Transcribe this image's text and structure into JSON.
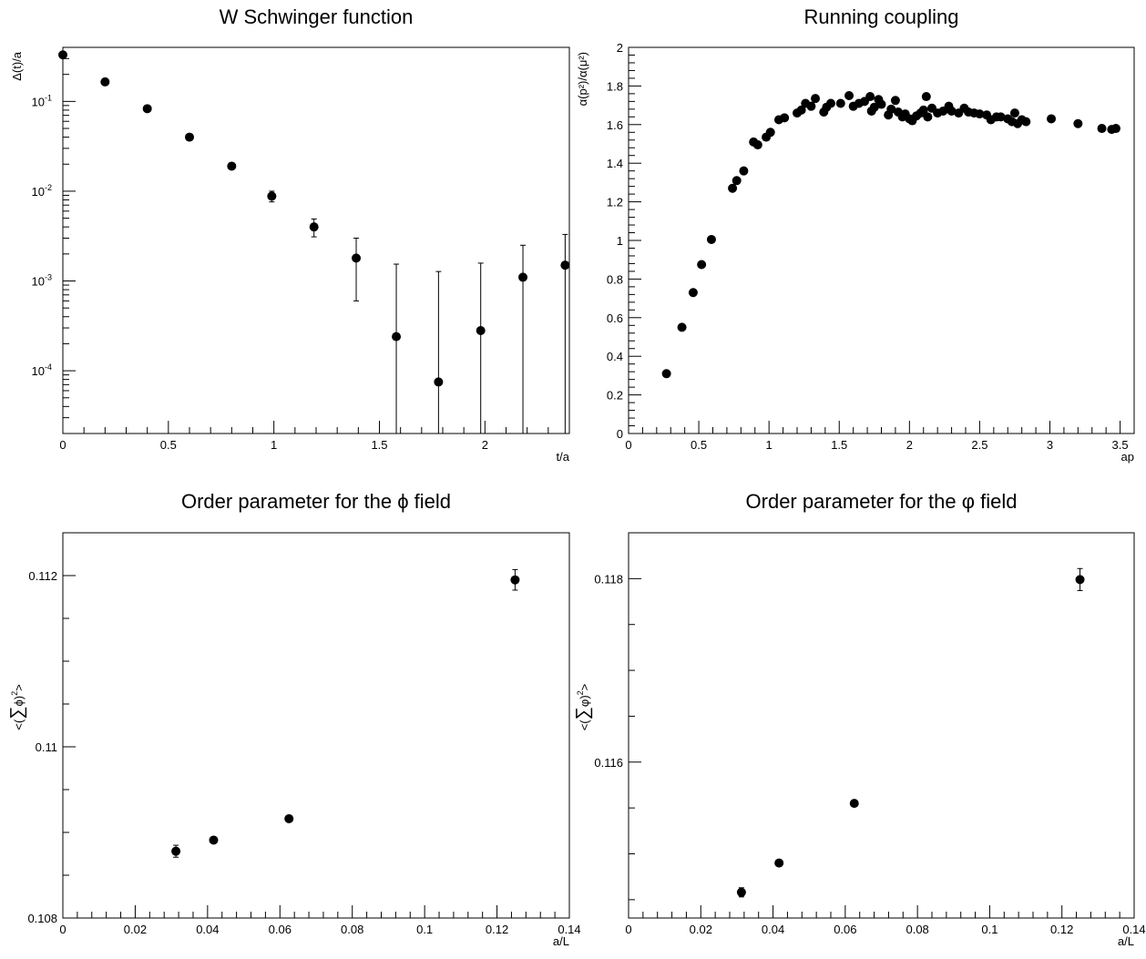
{
  "chart_data": [
    {
      "type": "scatter",
      "title": "W Schwinger function",
      "xlabel": "t/a",
      "ylabel": "Δ(t)/a",
      "xlim": [
        0,
        2.4
      ],
      "ylim": [
        2e-05,
        0.4
      ],
      "yscale": "log",
      "x_ticks": [
        0,
        0.5,
        1,
        1.5,
        2
      ],
      "y_ticks": [
        0.0001,
        0.001,
        0.01,
        0.1
      ],
      "x_tick_labels": [
        "0",
        "0.5",
        "1",
        "1.5",
        "2"
      ],
      "y_tick_labels": [
        {
          "base": "10",
          "exp": "-4"
        },
        {
          "base": "10",
          "exp": "-3"
        },
        {
          "base": "10",
          "exp": "-2"
        },
        {
          "base": "10",
          "exp": "-1"
        }
      ],
      "grid": false,
      "points": [
        {
          "x": 0.0,
          "y": 0.33,
          "err": 0
        },
        {
          "x": 0.2,
          "y": 0.165,
          "err": 0
        },
        {
          "x": 0.4,
          "y": 0.083,
          "err": 0
        },
        {
          "x": 0.6,
          "y": 0.04,
          "err": 0
        },
        {
          "x": 0.8,
          "y": 0.019,
          "err": 0
        },
        {
          "x": 0.99,
          "y": 0.0088,
          "err": 0.0012
        },
        {
          "x": 1.19,
          "y": 0.004,
          "err": 0.0009
        },
        {
          "x": 1.39,
          "y": 0.0018,
          "err": 0.0012
        },
        {
          "x": 1.58,
          "y": 0.00024,
          "err": 0.0013
        },
        {
          "x": 1.78,
          "y": 7.5e-05,
          "err": 0.0012
        },
        {
          "x": 1.98,
          "y": 0.00028,
          "err": 0.0013
        },
        {
          "x": 2.18,
          "y": 0.0011,
          "err": 0.0014
        },
        {
          "x": 2.38,
          "y": 0.0015,
          "err": 0.0018
        }
      ]
    },
    {
      "type": "scatter",
      "title": "Running coupling",
      "xlabel": "ap",
      "ylabel": "α(p²)/α(μ²)",
      "xlim": [
        0,
        3.6
      ],
      "ylim": [
        0,
        2
      ],
      "yscale": "linear",
      "x_ticks": [
        0,
        0.5,
        1,
        1.5,
        2,
        2.5,
        3,
        3.5
      ],
      "y_ticks": [
        0,
        0.2,
        0.4,
        0.6,
        0.8,
        1,
        1.2,
        1.4,
        1.6,
        1.8,
        2
      ],
      "x_tick_labels": [
        "0",
        "0.5",
        "1",
        "1.5",
        "2",
        "2.5",
        "3",
        "3.5"
      ],
      "y_tick_labels": [
        "0",
        "0.2",
        "0.4",
        "0.6",
        "0.8",
        "1",
        "1.2",
        "1.4",
        "1.6",
        "1.8",
        "2"
      ],
      "grid": false,
      "points": [
        {
          "x": 0.27,
          "y": 0.31
        },
        {
          "x": 0.38,
          "y": 0.55
        },
        {
          "x": 0.46,
          "y": 0.73
        },
        {
          "x": 0.52,
          "y": 0.875
        },
        {
          "x": 0.59,
          "y": 1.005
        },
        {
          "x": 0.74,
          "y": 1.27
        },
        {
          "x": 0.77,
          "y": 1.31
        },
        {
          "x": 0.82,
          "y": 1.36
        },
        {
          "x": 0.89,
          "y": 1.51
        },
        {
          "x": 0.92,
          "y": 1.495
        },
        {
          "x": 0.98,
          "y": 1.535
        },
        {
          "x": 1.01,
          "y": 1.56
        },
        {
          "x": 1.07,
          "y": 1.625
        },
        {
          "x": 1.11,
          "y": 1.635
        },
        {
          "x": 1.2,
          "y": 1.66
        },
        {
          "x": 1.23,
          "y": 1.675
        },
        {
          "x": 1.26,
          "y": 1.71
        },
        {
          "x": 1.3,
          "y": 1.695
        },
        {
          "x": 1.33,
          "y": 1.735
        },
        {
          "x": 1.39,
          "y": 1.665
        },
        {
          "x": 1.41,
          "y": 1.69
        },
        {
          "x": 1.44,
          "y": 1.71
        },
        {
          "x": 1.51,
          "y": 1.71
        },
        {
          "x": 1.57,
          "y": 1.75
        },
        {
          "x": 1.6,
          "y": 1.695
        },
        {
          "x": 1.64,
          "y": 1.71
        },
        {
          "x": 1.68,
          "y": 1.72
        },
        {
          "x": 1.72,
          "y": 1.745
        },
        {
          "x": 1.73,
          "y": 1.67
        },
        {
          "x": 1.75,
          "y": 1.69
        },
        {
          "x": 1.78,
          "y": 1.73
        },
        {
          "x": 1.8,
          "y": 1.705
        },
        {
          "x": 1.85,
          "y": 1.65
        },
        {
          "x": 1.87,
          "y": 1.68
        },
        {
          "x": 1.9,
          "y": 1.725
        },
        {
          "x": 1.92,
          "y": 1.665
        },
        {
          "x": 1.95,
          "y": 1.64
        },
        {
          "x": 1.97,
          "y": 1.655
        },
        {
          "x": 2.0,
          "y": 1.63
        },
        {
          "x": 2.02,
          "y": 1.62
        },
        {
          "x": 2.05,
          "y": 1.645
        },
        {
          "x": 2.08,
          "y": 1.66
        },
        {
          "x": 2.1,
          "y": 1.675
        },
        {
          "x": 2.12,
          "y": 1.745
        },
        {
          "x": 2.13,
          "y": 1.64
        },
        {
          "x": 2.16,
          "y": 1.685
        },
        {
          "x": 2.2,
          "y": 1.66
        },
        {
          "x": 2.24,
          "y": 1.67
        },
        {
          "x": 2.28,
          "y": 1.695
        },
        {
          "x": 2.3,
          "y": 1.67
        },
        {
          "x": 2.35,
          "y": 1.66
        },
        {
          "x": 2.39,
          "y": 1.685
        },
        {
          "x": 2.42,
          "y": 1.665
        },
        {
          "x": 2.46,
          "y": 1.66
        },
        {
          "x": 2.5,
          "y": 1.655
        },
        {
          "x": 2.55,
          "y": 1.65
        },
        {
          "x": 2.58,
          "y": 1.625
        },
        {
          "x": 2.62,
          "y": 1.64
        },
        {
          "x": 2.65,
          "y": 1.64
        },
        {
          "x": 2.7,
          "y": 1.63
        },
        {
          "x": 2.73,
          "y": 1.615
        },
        {
          "x": 2.75,
          "y": 1.66
        },
        {
          "x": 2.77,
          "y": 1.605
        },
        {
          "x": 2.8,
          "y": 1.625
        },
        {
          "x": 2.83,
          "y": 1.615
        },
        {
          "x": 3.01,
          "y": 1.63
        },
        {
          "x": 3.2,
          "y": 1.605
        },
        {
          "x": 3.37,
          "y": 1.58
        },
        {
          "x": 3.44,
          "y": 1.575
        },
        {
          "x": 3.47,
          "y": 1.58
        }
      ]
    },
    {
      "type": "scatter",
      "title": "Order parameter for the ϕ field",
      "xlabel": "a/L",
      "ylabel": {
        "pre": "<(",
        "sum": "∑",
        "post": "ϕ)",
        "sup": "2",
        "close": ">"
      },
      "xlim": [
        0,
        0.14
      ],
      "ylim": [
        0.108,
        0.1125
      ],
      "yscale": "linear",
      "x_ticks": [
        0,
        0.02,
        0.04,
        0.06,
        0.08,
        0.1,
        0.12,
        0.14
      ],
      "x_tick_labels": [
        "0",
        "0.02",
        "0.04",
        "0.06",
        "0.08",
        "0.1",
        "0.12",
        "0.14"
      ],
      "y_ticks": [
        0.108,
        0.11,
        0.112
      ],
      "y_tick_labels": [
        "0.108",
        "0.11",
        "0.112"
      ],
      "y_minor_step": 0.0005,
      "grid": false,
      "points": [
        {
          "x": 0.03125,
          "y": 0.10878,
          "err": 7e-05
        },
        {
          "x": 0.04167,
          "y": 0.10891,
          "err": 3e-05
        },
        {
          "x": 0.0625,
          "y": 0.10916,
          "err": 3e-05
        },
        {
          "x": 0.125,
          "y": 0.11195,
          "err": 0.00012
        }
      ]
    },
    {
      "type": "scatter",
      "title": "Order parameter for the φ field",
      "xlabel": "a/L",
      "ylabel": {
        "pre": "<(",
        "sum": "∑",
        "post": "φ)",
        "sup": "2",
        "close": ">"
      },
      "xlim": [
        0,
        0.14
      ],
      "ylim": [
        0.1143,
        0.1185
      ],
      "yscale": "linear",
      "x_ticks": [
        0,
        0.02,
        0.04,
        0.06,
        0.08,
        0.1,
        0.12,
        0.14
      ],
      "x_tick_labels": [
        "0",
        "0.02",
        "0.04",
        "0.06",
        "0.08",
        "0.1",
        "0.12",
        "0.14"
      ],
      "y_ticks": [
        0.116,
        0.118
      ],
      "y_tick_labels": [
        "0.116",
        "0.118"
      ],
      "y_minor_step": 0.0005,
      "grid": false,
      "points": [
        {
          "x": 0.03125,
          "y": 0.11458,
          "err": 5e-05
        },
        {
          "x": 0.04167,
          "y": 0.1149,
          "err": 2e-05
        },
        {
          "x": 0.0625,
          "y": 0.11555,
          "err": 2e-05
        },
        {
          "x": 0.125,
          "y": 0.11799,
          "err": 0.00012
        }
      ]
    }
  ]
}
